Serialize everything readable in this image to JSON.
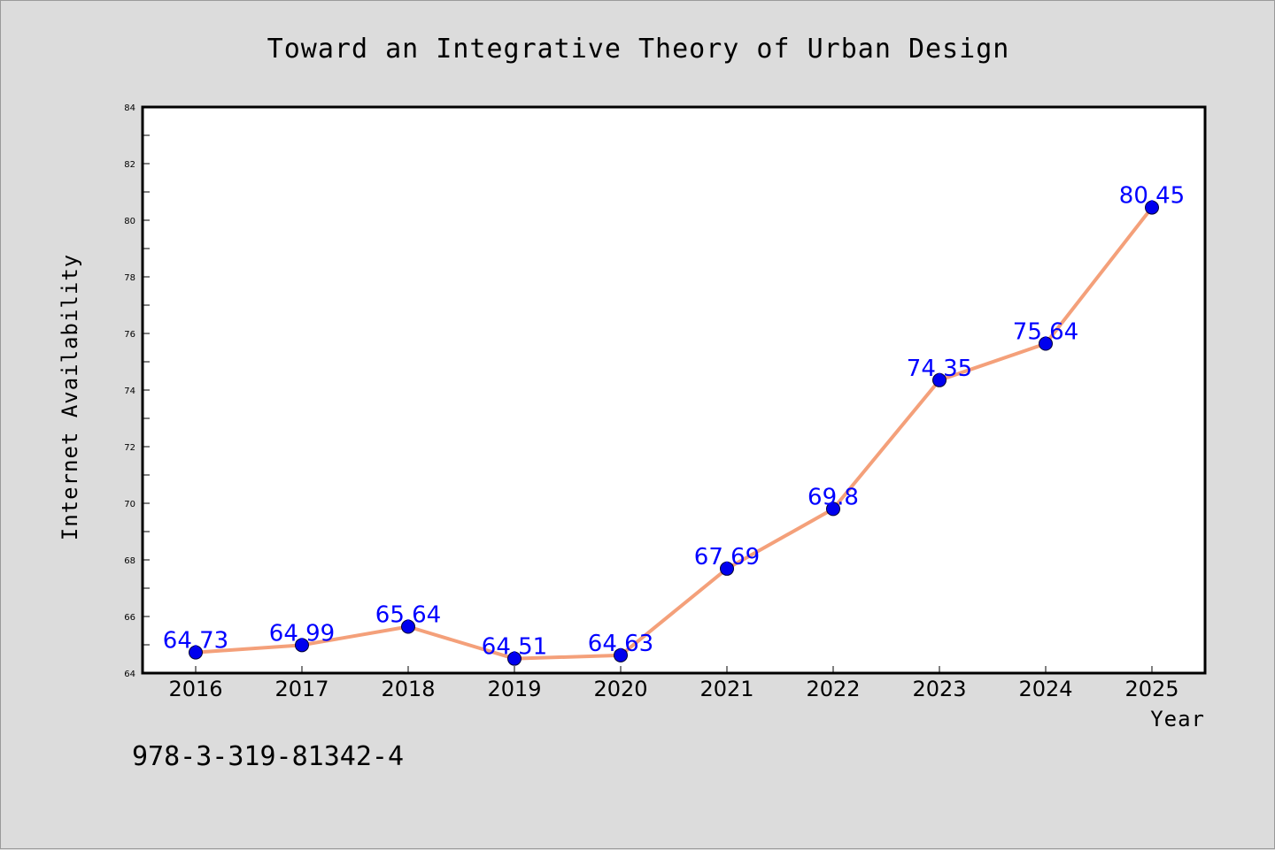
{
  "colors": {
    "background": "#dcdcdc",
    "plot_background": "#ffffff",
    "line": "#f4a07a",
    "marker": "#0000ee",
    "data_label": "#0000ff",
    "axes": "#000000"
  },
  "footer": {
    "isbn": "978-3-319-81342-4"
  },
  "chart_data": {
    "type": "line",
    "title": "Toward an Integrative Theory of Urban Design",
    "xlabel": "Year",
    "ylabel": "Internet Availability",
    "categories": [
      "2016",
      "2017",
      "2018",
      "2019",
      "2020",
      "2021",
      "2022",
      "2023",
      "2024",
      "2025"
    ],
    "series": [
      {
        "values": [
          64.73,
          64.99,
          65.64,
          64.51,
          64.63,
          67.69,
          69.8,
          74.35,
          75.64,
          80.45
        ],
        "labels": [
          "64.73",
          "64.99",
          "65.64",
          "64.51",
          "64.63",
          "67.69",
          "69.8",
          "74.35",
          "75.64",
          "80.45"
        ]
      }
    ],
    "ylim": [
      64,
      84
    ],
    "yticks": [
      64,
      66,
      68,
      70,
      72,
      74,
      76,
      78,
      80,
      82,
      84
    ],
    "grid": false,
    "legend": "none",
    "marker": "circle"
  }
}
